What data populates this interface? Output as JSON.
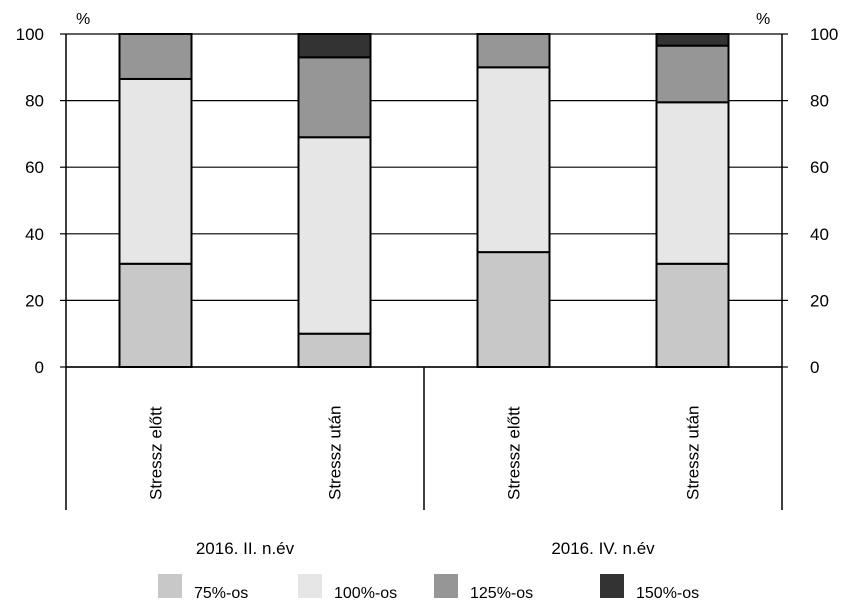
{
  "chart_data": {
    "type": "bar",
    "stacked": true,
    "categories": [
      "Stressz előtt",
      "Stressz után",
      "Stressz előtt",
      "Stressz után"
    ],
    "groups": [
      {
        "label": "2016. II. n.év",
        "categories": [
          0,
          1
        ]
      },
      {
        "label": "2016. IV. n.év",
        "categories": [
          2,
          3
        ]
      }
    ],
    "series": [
      {
        "name": "75%-os",
        "color": "#c8c8c8",
        "values": [
          31,
          10,
          34.5,
          31
        ]
      },
      {
        "name": "100%-os",
        "color": "#e6e6e6",
        "values": [
          55.5,
          59,
          55.5,
          48.5
        ]
      },
      {
        "name": "125%-os",
        "color": "#969696",
        "values": [
          13.5,
          24,
          10,
          17
        ]
      },
      {
        "name": "150%-os",
        "color": "#333333",
        "values": [
          0,
          7,
          0,
          3.5
        ]
      }
    ],
    "ylim": [
      0,
      100
    ],
    "yticks": [
      0,
      20,
      40,
      60,
      80,
      100
    ],
    "y_unit_left": "%",
    "y_unit_right": "%",
    "grid": true,
    "legend_position": "bottom"
  }
}
